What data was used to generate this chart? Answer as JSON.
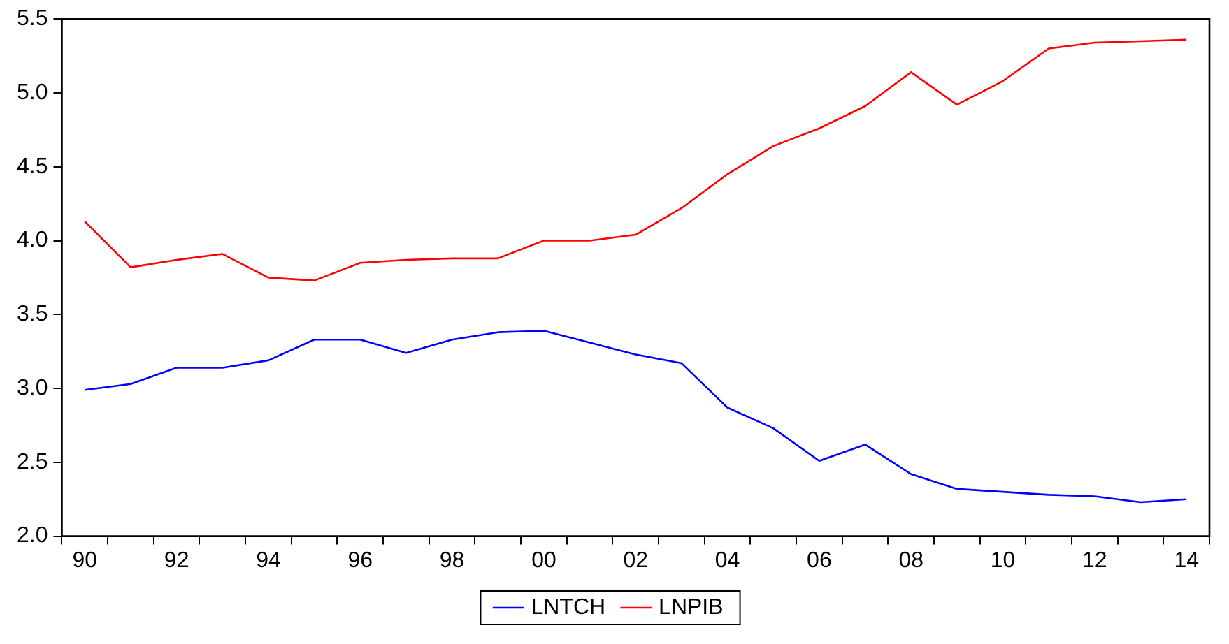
{
  "chart_data": {
    "type": "line",
    "categories": [
      "90",
      null,
      "92",
      null,
      "94",
      null,
      "96",
      null,
      "98",
      null,
      "00",
      null,
      "02",
      null,
      "04",
      null,
      "06",
      null,
      "08",
      null,
      "10",
      null,
      "12",
      null,
      "14"
    ],
    "series": [
      {
        "name": "LNTCH",
        "color": "#0000ff",
        "values": [
          2.99,
          3.03,
          3.14,
          3.14,
          3.19,
          3.33,
          3.33,
          3.24,
          3.33,
          3.38,
          3.39,
          3.31,
          3.23,
          3.17,
          2.87,
          2.73,
          2.51,
          2.62,
          2.42,
          2.32,
          2.3,
          2.28,
          2.27,
          2.23,
          2.25
        ]
      },
      {
        "name": "LNPIB",
        "color": "#ff0000",
        "values": [
          4.13,
          3.82,
          3.87,
          3.91,
          3.75,
          3.73,
          3.85,
          3.87,
          3.88,
          3.88,
          4.0,
          4.0,
          4.04,
          4.22,
          4.45,
          4.64,
          4.76,
          4.91,
          5.14,
          4.92,
          5.08,
          5.3,
          5.34,
          5.35,
          5.36
        ]
      }
    ],
    "ylim": [
      2.0,
      5.5
    ],
    "yticks": [
      {
        "value": 2.0,
        "label": "2.0"
      },
      {
        "value": 2.5,
        "label": "2.5"
      },
      {
        "value": 3.0,
        "label": "3.0"
      },
      {
        "value": 3.5,
        "label": "3.5"
      },
      {
        "value": 4.0,
        "label": "4.0"
      },
      {
        "value": 4.5,
        "label": "4.5"
      },
      {
        "value": 5.0,
        "label": "5.0"
      },
      {
        "value": 5.5,
        "label": "5.5"
      }
    ],
    "grid": false,
    "legend": "bottom",
    "marker": "none",
    "line_style": "solid"
  }
}
